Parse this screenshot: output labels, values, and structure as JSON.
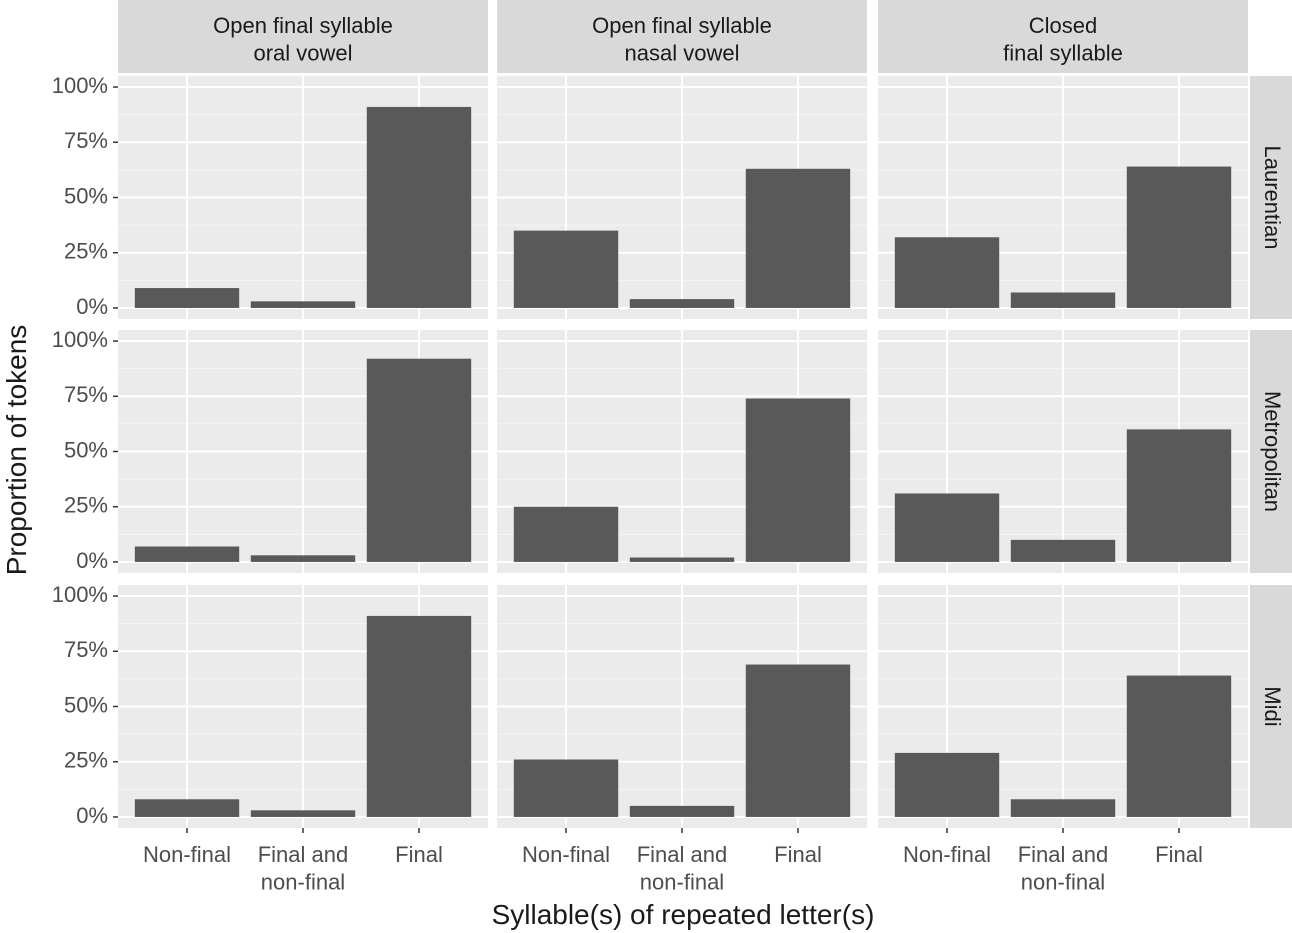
{
  "chart_data": {
    "type": "bar",
    "x_label": "Syllable(s) of repeated letter(s)",
    "y_label": "Proportion of tokens",
    "columns": [
      "Open final syllable\noral vowel",
      "Open final syllable\nnasal vowel",
      "Closed\nfinal syllable"
    ],
    "categories": [
      "Non-final",
      "Final and\nnon-final",
      "Final"
    ],
    "rows": [
      {
        "label": "Laurentian",
        "panels": [
          [
            9,
            3,
            91
          ],
          [
            35,
            4,
            63
          ],
          [
            32,
            7,
            64
          ]
        ]
      },
      {
        "label": "Metropolitan",
        "panels": [
          [
            7,
            3,
            92
          ],
          [
            25,
            2,
            74
          ],
          [
            31,
            10,
            60
          ]
        ]
      },
      {
        "label": "Midi",
        "panels": [
          [
            8,
            3,
            91
          ],
          [
            26,
            5,
            69
          ],
          [
            29,
            8,
            64
          ]
        ]
      }
    ],
    "color": "#595959",
    "ylim": [
      -5,
      105
    ],
    "yticks": [
      {
        "value": 0,
        "label": "0%"
      },
      {
        "value": 25,
        "label": "25%"
      },
      {
        "value": 50,
        "label": "50%"
      },
      {
        "value": 75,
        "label": "75%"
      },
      {
        "value": 100,
        "label": "100%"
      }
    ],
    "grid": true
  }
}
